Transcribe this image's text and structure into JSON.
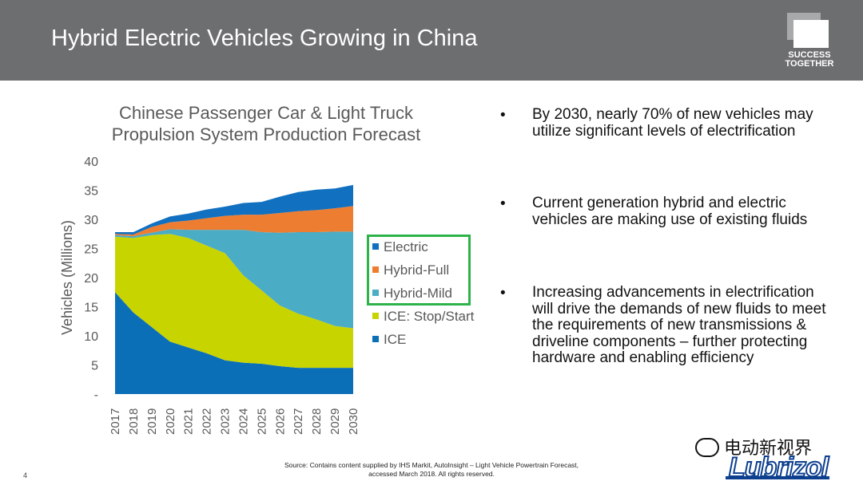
{
  "header": {
    "title": "Hybrid Electric Vehicles Growing in China",
    "logo_line1": "SUCCESS",
    "logo_line2": "TOGETHER"
  },
  "chart_data": {
    "type": "area",
    "title_line1": "Chinese Passenger Car & Light Truck",
    "title_line2": "Propulsion System Production Forecast",
    "ylabel": "Vehicles (Millions)",
    "xlabel": "",
    "ylim": [
      0,
      40
    ],
    "y_ticks": [
      "-",
      "5",
      "10",
      "15",
      "20",
      "25",
      "30",
      "35",
      "40"
    ],
    "categories": [
      "2017",
      "2018",
      "2019",
      "2020",
      "2021",
      "2022",
      "2023",
      "2024",
      "2025",
      "2026",
      "2027",
      "2028",
      "2029",
      "2030"
    ],
    "stacked": true,
    "series": [
      {
        "name": "ICE",
        "color": "#0b6fb8",
        "values": [
          17.5,
          14.0,
          11.5,
          9.0,
          8.0,
          7.0,
          5.8,
          5.4,
          5.2,
          4.8,
          4.5,
          4.5,
          4.5,
          4.5
        ]
      },
      {
        "name": "ICE: Stop/Start",
        "color": "#c8d400",
        "values": [
          9.5,
          12.8,
          15.8,
          18.5,
          18.8,
          18.5,
          18.4,
          15.0,
          12.6,
          10.4,
          9.3,
          8.3,
          7.2,
          6.8
        ]
      },
      {
        "name": "Hybrid-Mild",
        "color": "#4bacc6",
        "values": [
          0.3,
          0.3,
          0.4,
          0.8,
          1.4,
          2.7,
          4.0,
          7.8,
          10.0,
          12.5,
          14.0,
          15.0,
          16.2,
          16.6
        ]
      },
      {
        "name": "Hybrid-Full",
        "color": "#ed7d31",
        "values": [
          0.2,
          0.3,
          1.0,
          1.2,
          1.6,
          2.0,
          2.4,
          2.6,
          3.0,
          3.4,
          3.6,
          3.8,
          4.0,
          4.4
        ]
      },
      {
        "name": "Electric",
        "color": "#1170c0",
        "values": [
          0.3,
          0.4,
          0.6,
          1.0,
          1.2,
          1.5,
          1.6,
          2.0,
          2.2,
          2.8,
          3.3,
          3.5,
          3.4,
          3.6
        ]
      }
    ],
    "legend": [
      {
        "name": "Electric",
        "color": "#1170c0"
      },
      {
        "name": "Hybrid-Full",
        "color": "#ed7d31"
      },
      {
        "name": "Hybrid-Mild",
        "color": "#4bacc6"
      },
      {
        "name": "ICE: Stop/Start",
        "color": "#c8d400"
      },
      {
        "name": "ICE",
        "color": "#0b6fb8"
      }
    ],
    "legend_placement": "right",
    "grid": false
  },
  "bullets": [
    {
      "symbol": "•",
      "text": "By 2030, nearly 70% of new vehicles may utilize significant levels of electrification"
    },
    {
      "symbol": "•",
      "text": "Current generation hybrid and electric vehicles are making use of existing fluids"
    },
    {
      "symbol": "•",
      "text": "Increasing advancements in electrification will drive the demands of new fluids to meet the requirements of new transmissions & driveline components – further protecting hardware and enabling efficiency"
    }
  ],
  "footer": {
    "source_line1": "Source: Contains content supplied by IHS Markit, AutoInsight – Light Vehicle Powertrain Forecast,",
    "source_line2": "accessed March 2018. All rights reserved.",
    "page_number": "4",
    "watermark": "电动新视界",
    "brand": "Lubrizol"
  },
  "colors": {
    "header_bg": "#6d6e70",
    "legend_highlight": "#2db34a",
    "brand_blue": "#0d3f8f"
  }
}
